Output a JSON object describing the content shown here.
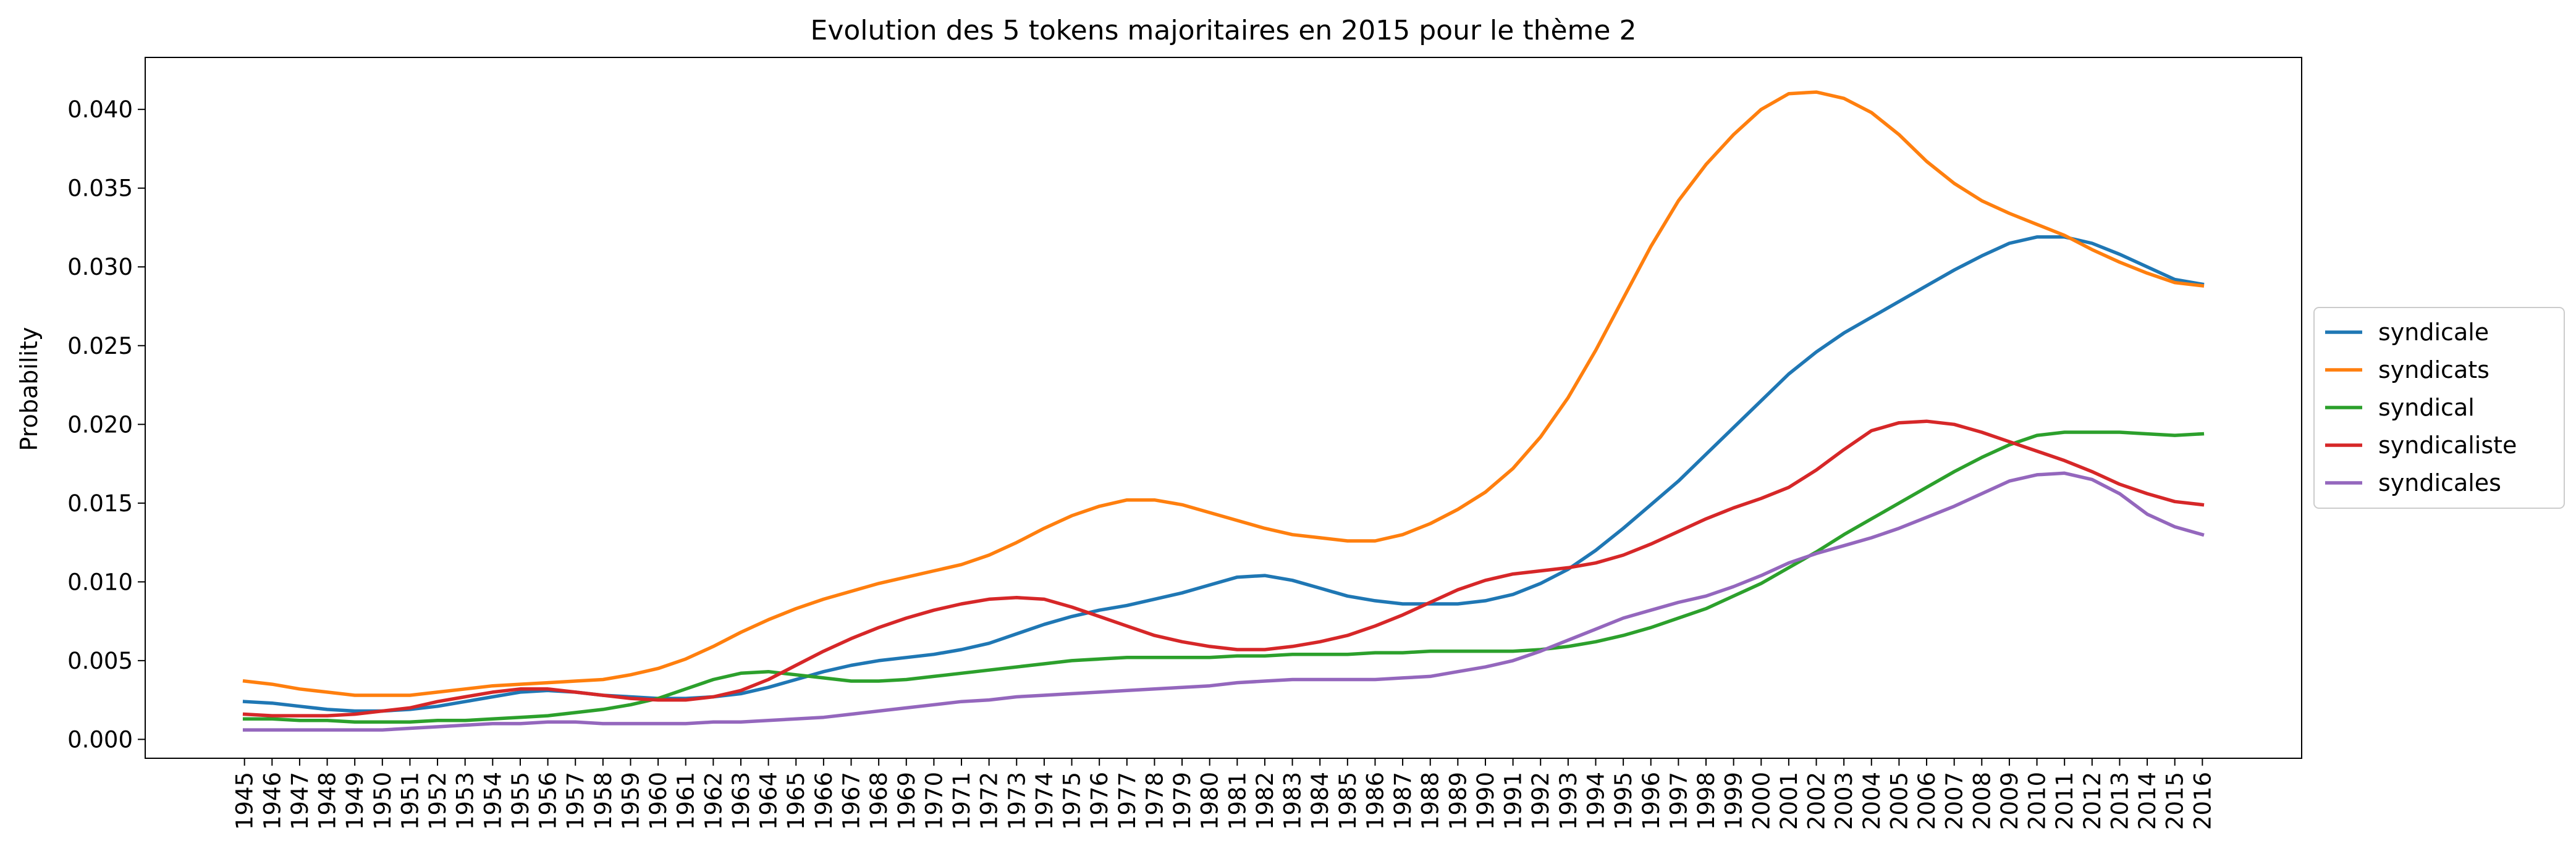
{
  "chart_data": {
    "type": "line",
    "title": "Evolution des 5 tokens majoritaires en 2015 pour le thème 2",
    "xlabel": "",
    "ylabel": "Probability",
    "ylim": [
      -0.0012,
      0.0433
    ],
    "yticks": [
      0.0,
      0.005,
      0.01,
      0.015,
      0.02,
      0.025,
      0.03,
      0.035,
      0.04
    ],
    "ytick_labels": [
      "0.000",
      "0.005",
      "0.010",
      "0.015",
      "0.020",
      "0.025",
      "0.030",
      "0.035",
      "0.040"
    ],
    "grid": false,
    "legend_position": "center-right",
    "x": [
      1945,
      1946,
      1947,
      1948,
      1949,
      1950,
      1951,
      1952,
      1953,
      1954,
      1955,
      1956,
      1957,
      1958,
      1959,
      1960,
      1961,
      1962,
      1963,
      1964,
      1965,
      1966,
      1967,
      1968,
      1969,
      1970,
      1971,
      1972,
      1973,
      1974,
      1975,
      1976,
      1977,
      1978,
      1979,
      1980,
      1981,
      1982,
      1983,
      1984,
      1985,
      1986,
      1987,
      1988,
      1989,
      1990,
      1991,
      1992,
      1993,
      1994,
      1995,
      1996,
      1997,
      1998,
      1999,
      2000,
      2001,
      2002,
      2003,
      2004,
      2005,
      2006,
      2007,
      2008,
      2009,
      2010,
      2011,
      2012,
      2013,
      2014,
      2015,
      2016
    ],
    "series": [
      {
        "name": "syndicale",
        "color": "#1f77b4",
        "values": [
          0.0024,
          0.0023,
          0.0021,
          0.0019,
          0.0018,
          0.0018,
          0.0019,
          0.0021,
          0.0024,
          0.0027,
          0.003,
          0.0031,
          0.003,
          0.0028,
          0.0027,
          0.0026,
          0.0026,
          0.0027,
          0.0029,
          0.0033,
          0.0038,
          0.0043,
          0.0047,
          0.005,
          0.0052,
          0.0054,
          0.0057,
          0.0061,
          0.0067,
          0.0073,
          0.0078,
          0.0082,
          0.0085,
          0.0089,
          0.0093,
          0.0098,
          0.0103,
          0.0104,
          0.0101,
          0.0096,
          0.0091,
          0.0088,
          0.0086,
          0.0086,
          0.0086,
          0.0088,
          0.0092,
          0.0099,
          0.0108,
          0.012,
          0.0134,
          0.0149,
          0.0164,
          0.0181,
          0.0198,
          0.0215,
          0.0232,
          0.0246,
          0.0258,
          0.0268,
          0.0278,
          0.0288,
          0.0298,
          0.0307,
          0.0315,
          0.0319,
          0.0319,
          0.0315,
          0.0308,
          0.03,
          0.0292,
          0.0289
        ]
      },
      {
        "name": "syndicats",
        "color": "#ff7f0e",
        "values": [
          0.0037,
          0.0035,
          0.0032,
          0.003,
          0.0028,
          0.0028,
          0.0028,
          0.003,
          0.0032,
          0.0034,
          0.0035,
          0.0036,
          0.0037,
          0.0038,
          0.0041,
          0.0045,
          0.0051,
          0.0059,
          0.0068,
          0.0076,
          0.0083,
          0.0089,
          0.0094,
          0.0099,
          0.0103,
          0.0107,
          0.0111,
          0.0117,
          0.0125,
          0.0134,
          0.0142,
          0.0148,
          0.0152,
          0.0152,
          0.0149,
          0.0144,
          0.0139,
          0.0134,
          0.013,
          0.0128,
          0.0126,
          0.0126,
          0.013,
          0.0137,
          0.0146,
          0.0157,
          0.0172,
          0.0192,
          0.0217,
          0.0247,
          0.028,
          0.0313,
          0.0342,
          0.0365,
          0.0384,
          0.04,
          0.041,
          0.0411,
          0.0407,
          0.0398,
          0.0384,
          0.0367,
          0.0353,
          0.0342,
          0.0334,
          0.0327,
          0.032,
          0.0311,
          0.0303,
          0.0296,
          0.029,
          0.0288
        ]
      },
      {
        "name": "syndical",
        "color": "#2ca02c",
        "values": [
          0.0013,
          0.0013,
          0.0012,
          0.0012,
          0.0011,
          0.0011,
          0.0011,
          0.0012,
          0.0012,
          0.0013,
          0.0014,
          0.0015,
          0.0017,
          0.0019,
          0.0022,
          0.0026,
          0.0032,
          0.0038,
          0.0042,
          0.0043,
          0.0041,
          0.0039,
          0.0037,
          0.0037,
          0.0038,
          0.004,
          0.0042,
          0.0044,
          0.0046,
          0.0048,
          0.005,
          0.0051,
          0.0052,
          0.0052,
          0.0052,
          0.0052,
          0.0053,
          0.0053,
          0.0054,
          0.0054,
          0.0054,
          0.0055,
          0.0055,
          0.0056,
          0.0056,
          0.0056,
          0.0056,
          0.0057,
          0.0059,
          0.0062,
          0.0066,
          0.0071,
          0.0077,
          0.0083,
          0.0091,
          0.0099,
          0.0109,
          0.0119,
          0.013,
          0.014,
          0.015,
          0.016,
          0.017,
          0.0179,
          0.0187,
          0.0193,
          0.0195,
          0.0195,
          0.0195,
          0.0194,
          0.0193,
          0.0194
        ]
      },
      {
        "name": "syndicaliste",
        "color": "#d62728",
        "values": [
          0.0016,
          0.0015,
          0.0015,
          0.0015,
          0.0016,
          0.0018,
          0.002,
          0.0024,
          0.0027,
          0.003,
          0.0032,
          0.0032,
          0.003,
          0.0028,
          0.0026,
          0.0025,
          0.0025,
          0.0027,
          0.0031,
          0.0038,
          0.0047,
          0.0056,
          0.0064,
          0.0071,
          0.0077,
          0.0082,
          0.0086,
          0.0089,
          0.009,
          0.0089,
          0.0084,
          0.0078,
          0.0072,
          0.0066,
          0.0062,
          0.0059,
          0.0057,
          0.0057,
          0.0059,
          0.0062,
          0.0066,
          0.0072,
          0.0079,
          0.0087,
          0.0095,
          0.0101,
          0.0105,
          0.0107,
          0.0109,
          0.0112,
          0.0117,
          0.0124,
          0.0132,
          0.014,
          0.0147,
          0.0153,
          0.016,
          0.0171,
          0.0184,
          0.0196,
          0.0201,
          0.0202,
          0.02,
          0.0195,
          0.0189,
          0.0183,
          0.0177,
          0.017,
          0.0162,
          0.0156,
          0.0151,
          0.0149
        ]
      },
      {
        "name": "syndicales",
        "color": "#9467bd",
        "values": [
          0.0006,
          0.0006,
          0.0006,
          0.0006,
          0.0006,
          0.0006,
          0.0007,
          0.0008,
          0.0009,
          0.001,
          0.001,
          0.0011,
          0.0011,
          0.001,
          0.001,
          0.001,
          0.001,
          0.0011,
          0.0011,
          0.0012,
          0.0013,
          0.0014,
          0.0016,
          0.0018,
          0.002,
          0.0022,
          0.0024,
          0.0025,
          0.0027,
          0.0028,
          0.0029,
          0.003,
          0.0031,
          0.0032,
          0.0033,
          0.0034,
          0.0036,
          0.0037,
          0.0038,
          0.0038,
          0.0038,
          0.0038,
          0.0039,
          0.004,
          0.0043,
          0.0046,
          0.005,
          0.0056,
          0.0063,
          0.007,
          0.0077,
          0.0082,
          0.0087,
          0.0091,
          0.0097,
          0.0104,
          0.0112,
          0.0118,
          0.0123,
          0.0128,
          0.0134,
          0.0141,
          0.0148,
          0.0156,
          0.0164,
          0.0168,
          0.0169,
          0.0165,
          0.0156,
          0.0143,
          0.0135,
          0.013
        ]
      }
    ]
  }
}
